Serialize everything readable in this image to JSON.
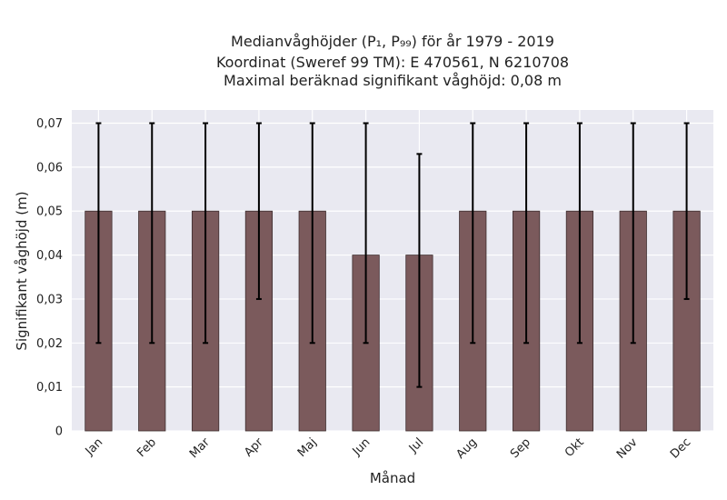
{
  "chart_data": {
    "type": "bar",
    "title_lines": [
      "Medianvåghöjder (P₁, P₉₉) för år 1979 - 2019",
      "Koordinat (Sweref 99 TM): E 470561, N 6210708",
      "Maximal beräknad signifikant våghöjd: 0,08 m"
    ],
    "xlabel": "Månad",
    "ylabel": "Signifikant våghöjd (m)",
    "categories": [
      "Jan",
      "Feb",
      "Mar",
      "Apr",
      "Maj",
      "Jun",
      "Jul",
      "Aug",
      "Sep",
      "Okt",
      "Nov",
      "Dec"
    ],
    "series": [
      {
        "values": [
          0.05,
          0.05,
          0.05,
          0.05,
          0.05,
          0.04,
          0.04,
          0.05,
          0.05,
          0.05,
          0.05,
          0.05
        ],
        "error_low": [
          0.02,
          0.02,
          0.02,
          0.03,
          0.02,
          0.02,
          0.01,
          0.02,
          0.02,
          0.02,
          0.02,
          0.03
        ],
        "error_high": [
          0.07,
          0.07,
          0.07,
          0.07,
          0.07,
          0.07,
          0.063,
          0.07,
          0.07,
          0.07,
          0.07,
          0.07
        ]
      }
    ],
    "ylim": [
      0,
      0.073
    ],
    "yticks": [
      0,
      0.01,
      0.02,
      0.03,
      0.04,
      0.05,
      0.06,
      0.07
    ],
    "ytick_labels": [
      "0",
      "0,01",
      "0,02",
      "0,03",
      "0,04",
      "0,05",
      "0,06",
      "0,07"
    ],
    "grid": true,
    "colors": {
      "bar": "#7b5a5c",
      "bar_edge": "#3d2d2e",
      "plot_bg": "#e9e9f1",
      "grid": "#ffffff",
      "error": "#000000"
    }
  }
}
